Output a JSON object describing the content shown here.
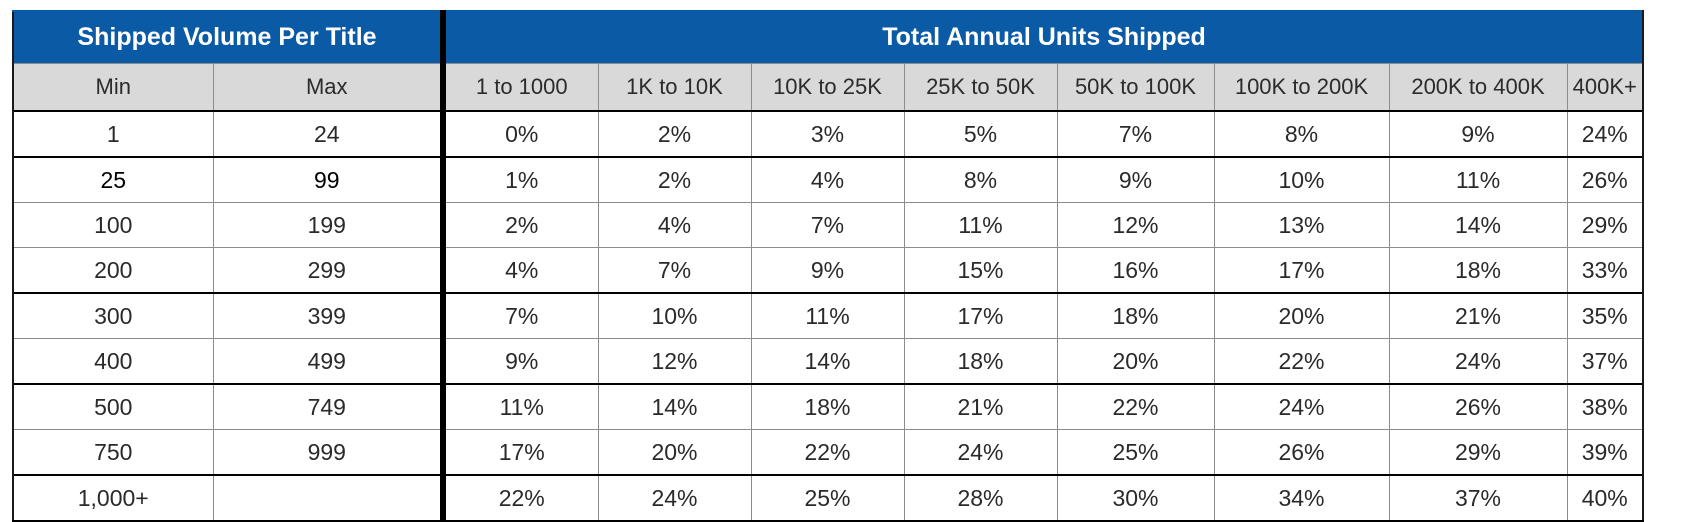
{
  "banner": {
    "left": "Shipped Volume Per Title",
    "right": "Total Annual Units Shipped"
  },
  "columns": {
    "min": "Min",
    "max": "Max",
    "ranges": [
      "1 to 1000",
      "1K to 10K",
      "10K to 25K",
      "25K to 50K",
      "50K to 100K",
      "100K to 200K",
      "200K to 400K",
      "400K+"
    ]
  },
  "rows": [
    {
      "min": "1",
      "max": "24",
      "values": [
        "0%",
        "2%",
        "3%",
        "5%",
        "7%",
        "8%",
        "9%",
        "24%"
      ]
    },
    {
      "min": "25",
      "max": "99",
      "values": [
        "1%",
        "2%",
        "4%",
        "8%",
        "9%",
        "10%",
        "11%",
        "26%"
      ]
    },
    {
      "min": "100",
      "max": "199",
      "values": [
        "2%",
        "4%",
        "7%",
        "11%",
        "12%",
        "13%",
        "14%",
        "29%"
      ]
    },
    {
      "min": "200",
      "max": "299",
      "values": [
        "4%",
        "7%",
        "9%",
        "15%",
        "16%",
        "17%",
        "18%",
        "33%"
      ]
    },
    {
      "min": "300",
      "max": "399",
      "values": [
        "7%",
        "10%",
        "11%",
        "17%",
        "18%",
        "20%",
        "21%",
        "35%"
      ]
    },
    {
      "min": "400",
      "max": "499",
      "values": [
        "9%",
        "12%",
        "14%",
        "18%",
        "20%",
        "22%",
        "24%",
        "37%"
      ]
    },
    {
      "min": "500",
      "max": "749",
      "values": [
        "11%",
        "14%",
        "18%",
        "21%",
        "22%",
        "24%",
        "26%",
        "38%"
      ]
    },
    {
      "min": "750",
      "max": "999",
      "values": [
        "17%",
        "20%",
        "22%",
        "24%",
        "25%",
        "26%",
        "29%",
        "39%"
      ]
    },
    {
      "min": "1,000+",
      "max": "",
      "values": [
        "22%",
        "24%",
        "25%",
        "28%",
        "30%",
        "34%",
        "37%",
        "40%"
      ]
    }
  ],
  "colors": {
    "banner": "#0a5aa6",
    "subheader": "#d9d9d9",
    "text": "#2a2a2a"
  }
}
